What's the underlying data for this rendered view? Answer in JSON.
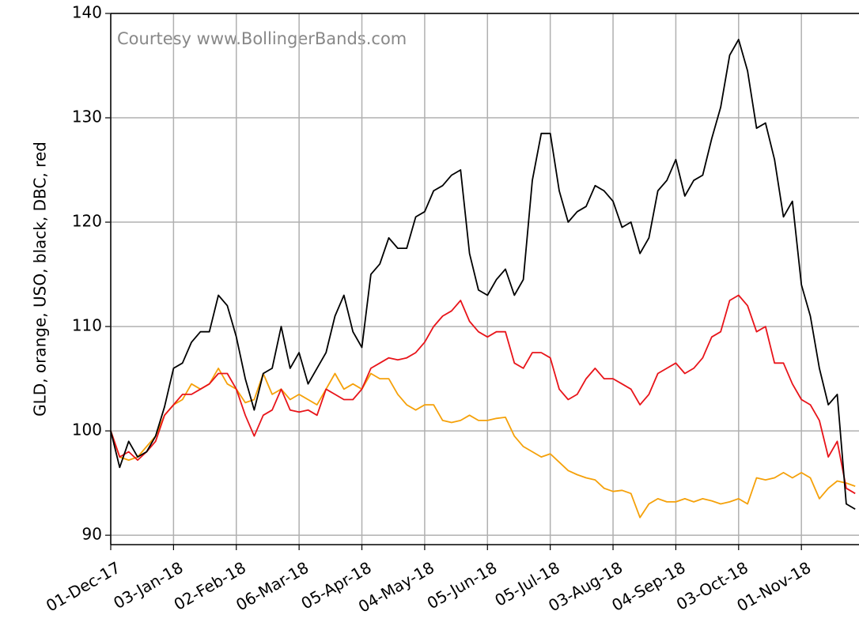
{
  "chart_data": {
    "type": "line",
    "annotation": "Courtesy www.BollingerBands.com",
    "y_label": "GLD, orange, USO, black, DBC, red",
    "categories": [
      "01-Dec-17",
      null,
      null,
      null,
      null,
      null,
      null,
      "03-Jan-18",
      null,
      null,
      null,
      null,
      null,
      null,
      "02-Feb-18",
      null,
      null,
      null,
      null,
      null,
      null,
      "06-Mar-18",
      null,
      null,
      null,
      null,
      null,
      null,
      "05-Apr-18",
      null,
      null,
      null,
      null,
      null,
      null,
      "04-May-18",
      null,
      null,
      null,
      null,
      null,
      null,
      "05-Jun-18",
      null,
      null,
      null,
      null,
      null,
      null,
      "05-Jul-18",
      null,
      null,
      null,
      null,
      null,
      null,
      "03-Aug-18",
      null,
      null,
      null,
      null,
      null,
      null,
      "04-Sep-18",
      null,
      null,
      null,
      null,
      null,
      null,
      "03-Oct-18",
      null,
      null,
      null,
      null,
      null,
      null,
      "01-Nov-18",
      null,
      null,
      null,
      null,
      null,
      null
    ],
    "series": [
      {
        "color": "#000000",
        "values": [
          100,
          96.5,
          99,
          97.5,
          98,
          99.5,
          102.3,
          106,
          106.5,
          108.5,
          109.5,
          109.5,
          113,
          112,
          109,
          105,
          102,
          105.5,
          106,
          110,
          106,
          107.5,
          104.5,
          106,
          107.5,
          111,
          113,
          109.5,
          108,
          115,
          116,
          118.5,
          117.5,
          117.5,
          120.5,
          121,
          123,
          123.5,
          124.5,
          125,
          117,
          113.5,
          113,
          114.5,
          115.5,
          113,
          114.5,
          124,
          128.5,
          128.5,
          123,
          120,
          121,
          121.5,
          123.5,
          123,
          122,
          119.5,
          120,
          117,
          118.5,
          123,
          124,
          126,
          122.5,
          124,
          124.5,
          128,
          131,
          136,
          137.5,
          134.5,
          129,
          129.5,
          126,
          120.5,
          122,
          114,
          111,
          106,
          102.5,
          103.5,
          93,
          92.5
        ]
      },
      {
        "color": "#f5a10a",
        "values": [
          100,
          97.5,
          97.2,
          97.5,
          98.5,
          99.5,
          101.5,
          102.5,
          103,
          104.5,
          104,
          104.5,
          106,
          104.5,
          104,
          102.7,
          103,
          105.5,
          103.5,
          104,
          103,
          103.5,
          103,
          102.5,
          104,
          105.5,
          104,
          104.5,
          104,
          105.5,
          105,
          105,
          103.5,
          102.5,
          102,
          102.5,
          102.5,
          101,
          100.8,
          101,
          101.5,
          101,
          101,
          101.2,
          101.3,
          99.5,
          98.5,
          98,
          97.5,
          97.8,
          97,
          96.2,
          95.8,
          95.5,
          95.3,
          94.5,
          94.2,
          94.3,
          94,
          91.7,
          93,
          93.5,
          93.2,
          93.2,
          93.5,
          93.2,
          93.5,
          93.3,
          93,
          93.2,
          93.5,
          93,
          95.5,
          95.3,
          95.5,
          96,
          95.5,
          96,
          95.5,
          93.5,
          94.5,
          95.2,
          95,
          94.7
        ]
      },
      {
        "color": "#e8141a",
        "values": [
          100,
          97.5,
          98,
          97.2,
          98,
          99,
          101.5,
          102.5,
          103.5,
          103.5,
          104,
          104.5,
          105.5,
          105.5,
          104,
          101.5,
          99.5,
          101.5,
          102,
          104,
          102,
          101.8,
          102,
          101.5,
          104,
          103.5,
          103,
          103,
          104,
          106,
          106.5,
          107,
          106.8,
          107,
          107.5,
          108.5,
          110,
          111,
          111.5,
          112.5,
          110.5,
          109.5,
          109,
          109.5,
          109.5,
          106.5,
          106,
          107.5,
          107.5,
          107,
          104,
          103,
          103.5,
          105,
          106,
          105,
          105,
          104.5,
          104,
          102.5,
          103.5,
          105.5,
          106,
          106.5,
          105.5,
          106,
          107,
          109,
          109.5,
          112.5,
          113,
          112,
          109.5,
          110,
          106.5,
          106.5,
          104.5,
          103,
          102.5,
          101,
          97.5,
          99,
          94.5,
          94
        ]
      }
    ],
    "ylim": [
      89.1,
      140
    ],
    "yticks": [
      90,
      100,
      110,
      120,
      130,
      140
    ],
    "grid": true
  }
}
